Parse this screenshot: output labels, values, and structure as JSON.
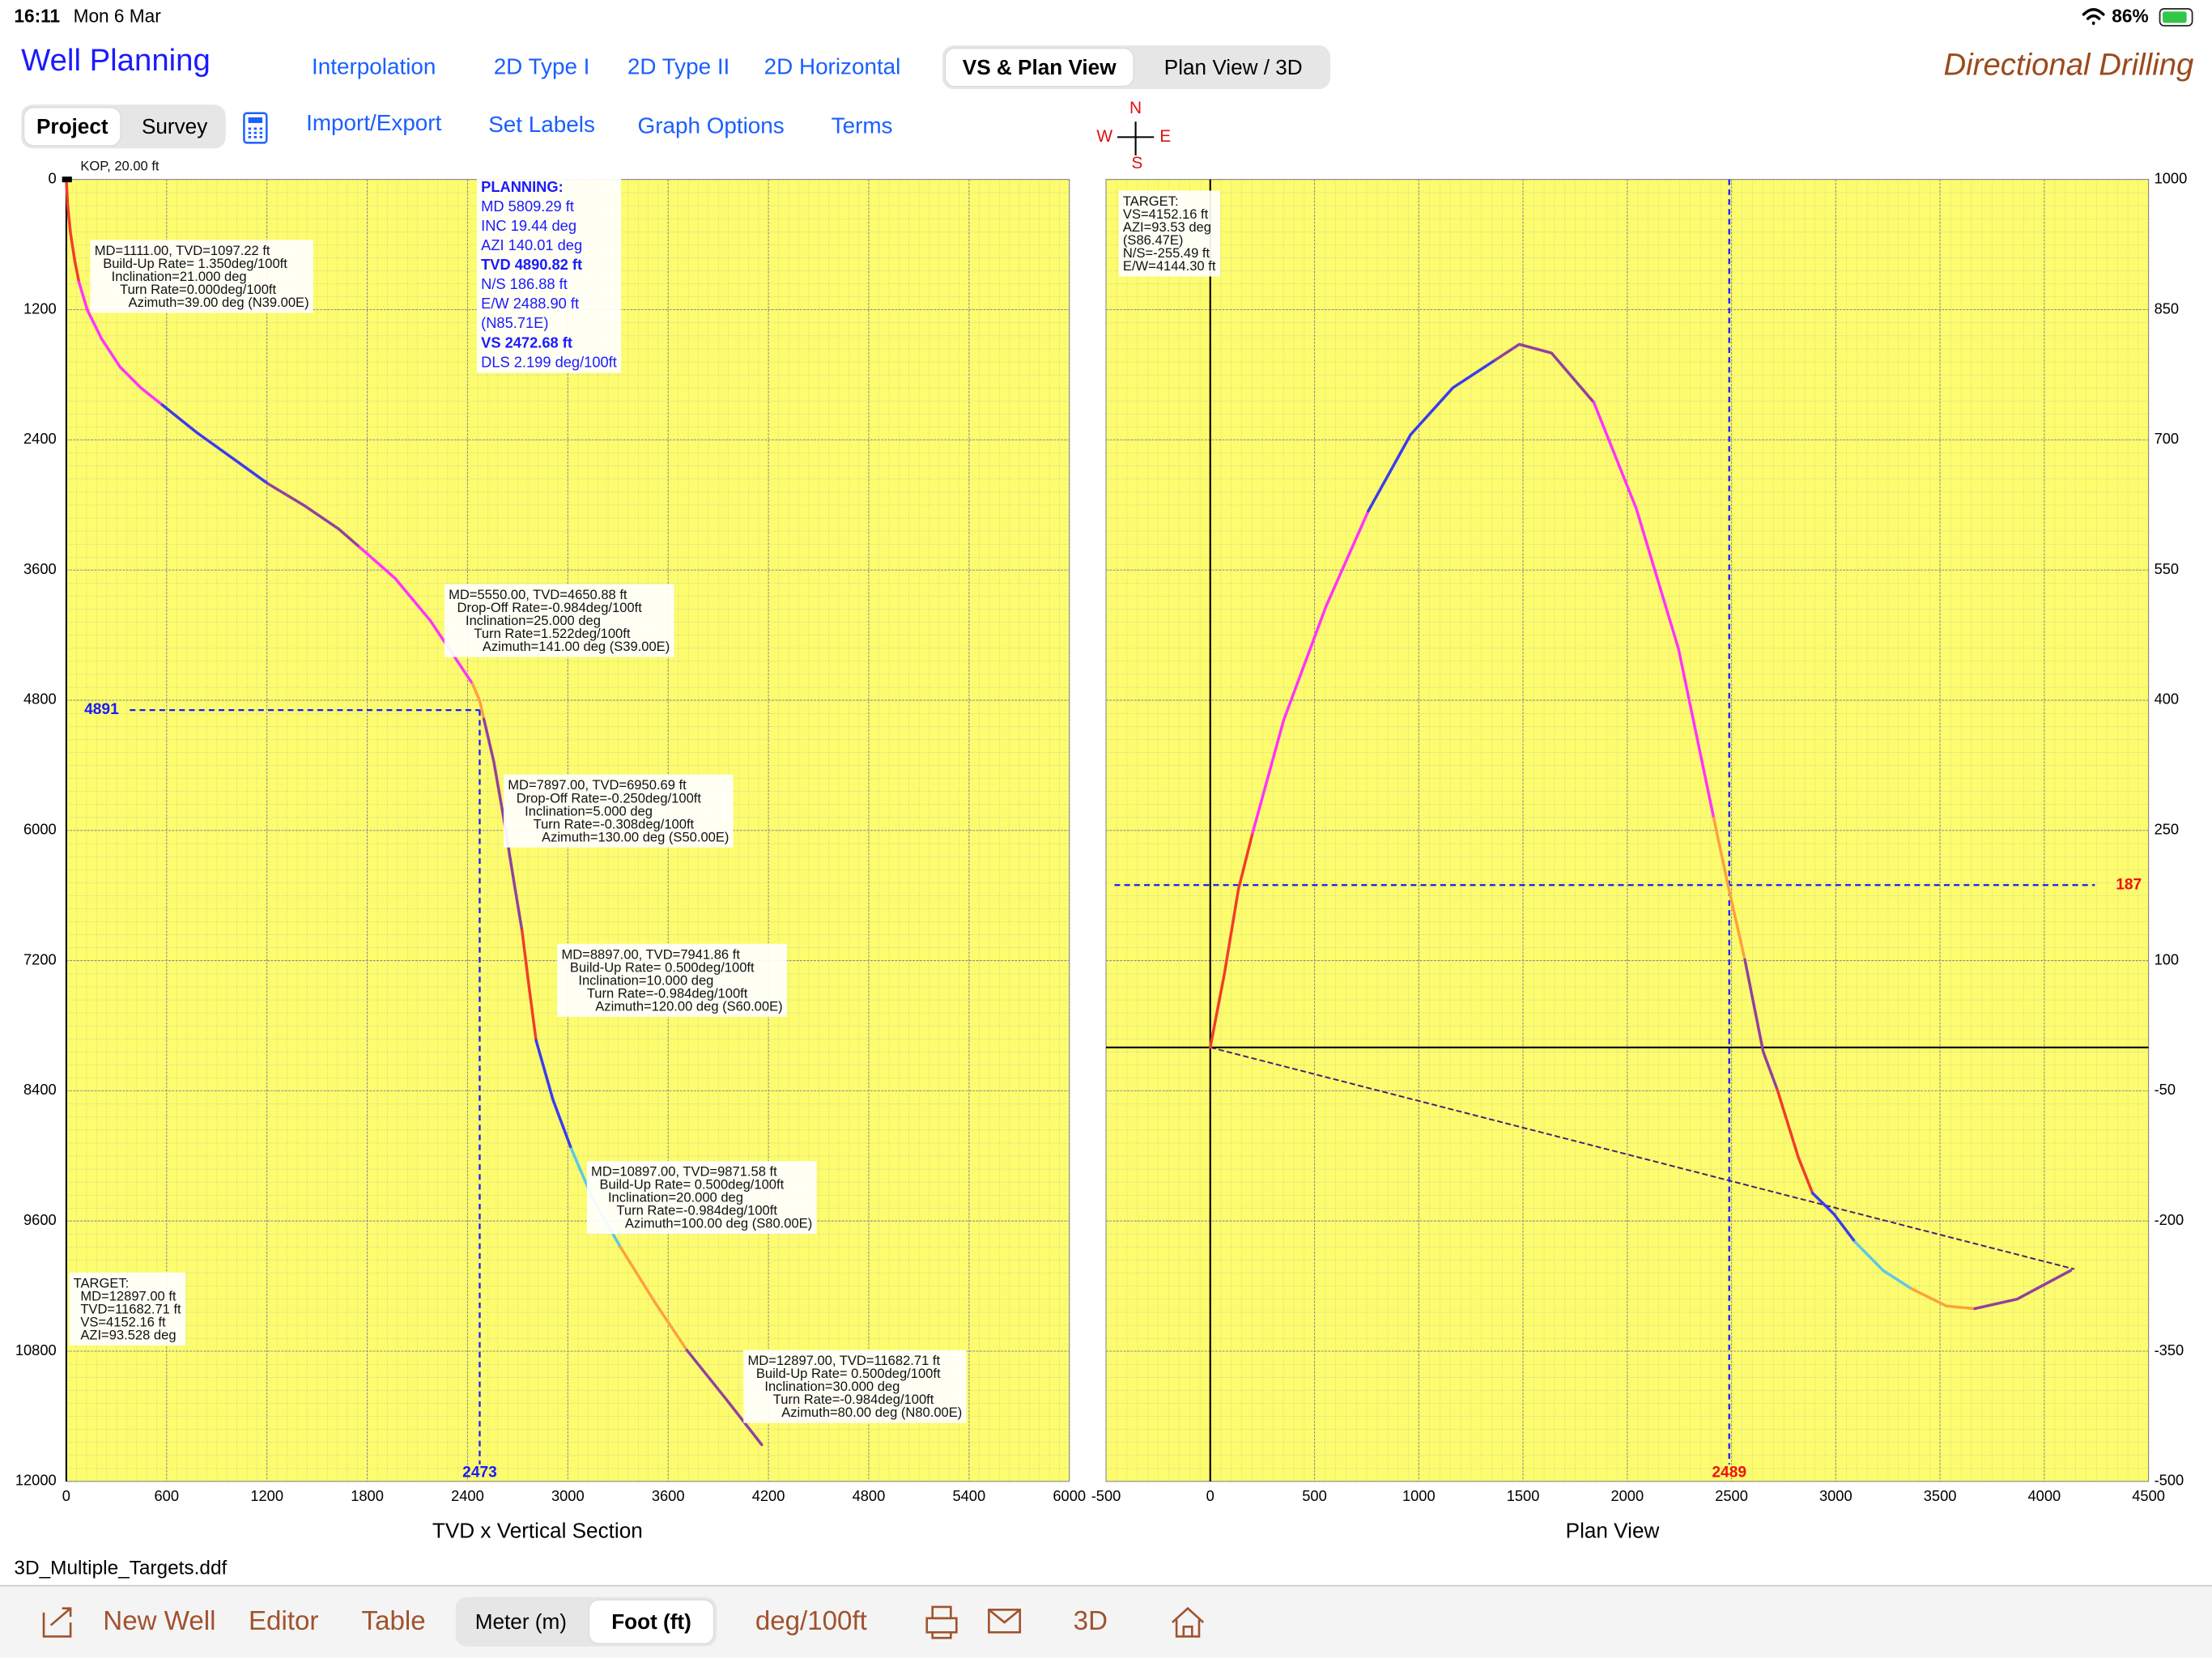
{
  "status_bar": {
    "time": "16:11",
    "date": "Mon 6 Mar",
    "battery": "86%"
  },
  "header": {
    "title": "Well Planning",
    "brand": "Directional Drilling",
    "tabs": [
      "Interpolation",
      "2D Type I",
      "2D Type II",
      "2D Horizontal"
    ],
    "view_toggle": {
      "options": [
        "VS & Plan View",
        "Plan View / 3D"
      ],
      "selected": 0
    }
  },
  "toolbar": {
    "mode_toggle": {
      "options": [
        "Project",
        "Survey"
      ],
      "selected": 0
    },
    "links": [
      "Import/Export",
      "Set Labels",
      "Graph Options",
      "Terms"
    ]
  },
  "compass": {
    "north": "N",
    "south": "S",
    "west": "W",
    "east": "E"
  },
  "file_name": "3D_Multiple_Targets.ddf",
  "bottom_bar": {
    "items": [
      "New Well",
      "Editor",
      "Table"
    ],
    "unit_toggle": {
      "options": [
        "Meter (m)",
        "Foot (ft)"
      ],
      "selected": 1
    },
    "rate_unit": "deg/100ft",
    "view_3d": "3D"
  },
  "chart_data": [
    {
      "type": "line",
      "xlabel": "TVD x Vertical Section",
      "xlim": [
        0,
        6000
      ],
      "xticks": [
        0,
        600,
        1200,
        1800,
        2400,
        3000,
        3600,
        4200,
        4800,
        5400,
        6000
      ],
      "ylim": [
        0,
        12000
      ],
      "yticks": [
        0,
        1200,
        2400,
        3600,
        4800,
        6000,
        7200,
        8400,
        9600,
        10800,
        12000
      ],
      "y_inverted": true,
      "y_axis_side": "left",
      "grid": true,
      "series": [
        {
          "color": "#f23c2a",
          "x": [
            0,
            8,
            25,
            51,
            76
          ],
          "values": [
            0,
            234,
            494,
            753,
            948
          ]
        },
        {
          "color": "#ff33ff",
          "x": [
            76,
            127,
            211,
            321,
            447,
            574
          ],
          "values": [
            948,
            1208,
            1468,
            1727,
            1922,
            2078
          ]
        },
        {
          "color": "#3b3bef",
          "x": [
            574,
            785,
            996,
            1207
          ],
          "values": [
            2078,
            2338,
            2571,
            2805
          ]
        },
        {
          "color": "#93409d",
          "x": [
            1207,
            1418,
            1629,
            1755
          ],
          "values": [
            2805,
            3000,
            3221,
            3390
          ]
        },
        {
          "color": "#ff33ff",
          "x": [
            1755,
            1966,
            2177,
            2346,
            2430
          ],
          "values": [
            3390,
            3675,
            4065,
            4455,
            4649
          ]
        },
        {
          "color": "#ffa040",
          "x": [
            2430,
            2473,
            2498
          ],
          "values": [
            4649,
            4805,
            4974
          ]
        },
        {
          "color": "#93409d",
          "x": [
            2498,
            2557,
            2616,
            2684,
            2726
          ],
          "values": [
            4974,
            5364,
            5883,
            6532,
            6922
          ]
        },
        {
          "color": "#f23c2a",
          "x": [
            2726,
            2768,
            2810
          ],
          "values": [
            6922,
            7442,
            7935
          ]
        },
        {
          "color": "#3b3bef",
          "x": [
            2810,
            2911,
            3021
          ],
          "values": [
            7935,
            8481,
            8935
          ]
        },
        {
          "color": "#5ac8e8",
          "x": [
            3021,
            3148,
            3316
          ],
          "values": [
            8935,
            9390,
            9844
          ]
        },
        {
          "color": "#ffa040",
          "x": [
            3316,
            3527,
            3713
          ],
          "values": [
            9844,
            10364,
            10792
          ]
        },
        {
          "color": "#93409d",
          "x": [
            3713,
            3949,
            4160
          ],
          "values": [
            10792,
            11246,
            11662
          ]
        }
      ],
      "crosshair": {
        "x": 2473,
        "y": 4891,
        "color": "#1a1aff",
        "label_color": "#1a1aff",
        "span": "to_point"
      },
      "annotations": [
        {
          "lines": [
            "KOP, 20.00 ft"
          ]
        },
        {
          "lines": [
            "MD=1111.00, TVD=1097.22 ft",
            "Build-Up Rate= 1.350deg/100ft",
            "Inclination=21.000 deg",
            "Turn Rate=0.000deg/100ft",
            "Azimuth=39.00 deg (N39.00E)"
          ]
        },
        {
          "lines": [
            "MD=5550.00, TVD=4650.88 ft",
            "Drop-Off Rate=-0.984deg/100ft",
            "Inclination=25.000 deg",
            "Turn Rate=1.522deg/100ft",
            "Azimuth=141.00 deg (S39.00E)"
          ]
        },
        {
          "lines": [
            "MD=7897.00, TVD=6950.69 ft",
            "Drop-Off Rate=-0.250deg/100ft",
            "Inclination=5.000 deg",
            "Turn Rate=-0.308deg/100ft",
            "Azimuth=130.00 deg (S50.00E)"
          ]
        },
        {
          "lines": [
            "MD=8897.00, TVD=7941.86 ft",
            "Build-Up Rate= 0.500deg/100ft",
            "Inclination=10.000 deg",
            "Turn Rate=-0.984deg/100ft",
            "Azimuth=120.00 deg (S60.00E)"
          ]
        },
        {
          "lines": [
            "MD=10897.00, TVD=9871.58 ft",
            "Build-Up Rate= 0.500deg/100ft",
            "Inclination=20.000 deg",
            "Turn Rate=-0.984deg/100ft",
            "Azimuth=100.00 deg (S80.00E)"
          ]
        },
        {
          "lines": [
            "MD=12897.00, TVD=11682.71 ft",
            "Build-Up Rate= 0.500deg/100ft",
            "Inclination=30.000 deg",
            "Turn Rate=-0.984deg/100ft",
            "Azimuth=80.00 deg (N80.00E)"
          ]
        },
        {
          "lines": [
            "TARGET:",
            "MD=12897.00 ft",
            "TVD=11682.71 ft",
            "VS=4152.16 ft",
            "AZI=93.528 deg"
          ]
        },
        {
          "lines": [
            "PLANNING:",
            "MD 5809.29 ft",
            "INC 19.44 deg",
            "AZI 140.01 deg",
            "TVD 4890.82 ft",
            "N/S 186.88 ft",
            "E/W 2488.90 ft",
            "(N85.71E)",
            "VS 2472.68 ft",
            "DLS 2.199 deg/100ft"
          ],
          "color": "#1a1aff"
        }
      ]
    },
    {
      "type": "line",
      "xlabel": "Plan View",
      "xlim": [
        -500,
        4500
      ],
      "xticks": [
        -500,
        0,
        500,
        1000,
        1500,
        2000,
        2500,
        3000,
        3500,
        4000,
        4500
      ],
      "ylim": [
        -500,
        1000
      ],
      "yticks": [
        1000,
        850,
        700,
        550,
        400,
        250,
        100,
        -50,
        -200,
        -350,
        -500
      ],
      "y_inverted": false,
      "y_axis_side": "right",
      "grid": true,
      "series": [
        {
          "color": "#f23c2a",
          "x": [
            0,
            68,
            135,
            203
          ],
          "values": [
            0,
            85,
            182,
            247
          ]
        },
        {
          "color": "#ff33ff",
          "x": [
            203,
            352,
            555,
            758
          ],
          "values": [
            247,
            377,
            508,
            618
          ]
        },
        {
          "color": "#3b3bef",
          "x": [
            758,
            961,
            1164,
            1367
          ],
          "values": [
            618,
            706,
            760,
            792
          ]
        },
        {
          "color": "#93409d",
          "x": [
            1367,
            1482,
            1637,
            1840
          ],
          "values": [
            792,
            810,
            800,
            743
          ]
        },
        {
          "color": "#ff33ff",
          "x": [
            1840,
            2043,
            2246,
            2415
          ],
          "values": [
            743,
            621,
            459,
            264
          ]
        },
        {
          "color": "#ffa040",
          "x": [
            2415,
            2483,
            2564
          ],
          "values": [
            264,
            187,
            101
          ]
        },
        {
          "color": "#93409d",
          "x": [
            2564,
            2652,
            2720
          ],
          "values": [
            101,
            -5,
            -49
          ]
        },
        {
          "color": "#f23c2a",
          "x": [
            2720,
            2821,
            2889
          ],
          "values": [
            -49,
            -127,
            -168
          ]
        },
        {
          "color": "#3b3bef",
          "x": [
            2889,
            2991,
            3092
          ],
          "values": [
            -168,
            -192,
            -224
          ]
        },
        {
          "color": "#5ac8e8",
          "x": [
            3092,
            3227,
            3363
          ],
          "values": [
            -224,
            -257,
            -278
          ]
        },
        {
          "color": "#ffa040",
          "x": [
            3363,
            3532,
            3667
          ],
          "values": [
            -278,
            -298,
            -301
          ]
        },
        {
          "color": "#93409d",
          "x": [
            3667,
            3870,
            4127
          ],
          "values": [
            -301,
            -290,
            -257
          ]
        }
      ],
      "target_line": {
        "x": [
          0,
          4144.3
        ],
        "values": [
          0,
          -255.49
        ],
        "color": "#4b1a6e"
      },
      "crosshair": {
        "x": 2489,
        "y": 187,
        "color": "#1a1aff",
        "label_color": "#ee1111",
        "span": "full"
      },
      "annotations": [
        {
          "lines": [
            "TARGET:",
            "VS=4152.16 ft",
            "AZI=93.53 deg",
            "(S86.47E)",
            "N/S=-255.49 ft",
            "E/W=4144.30 ft"
          ]
        }
      ]
    }
  ]
}
